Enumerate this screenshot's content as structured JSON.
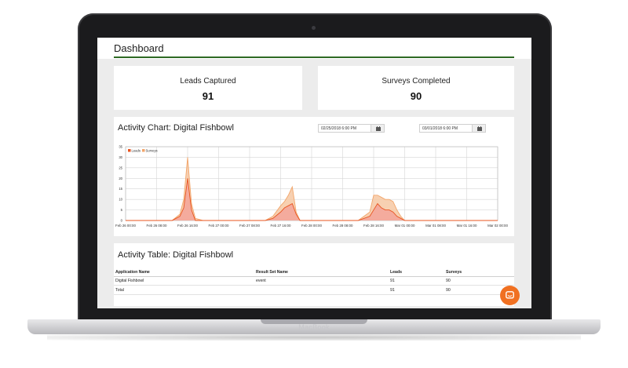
{
  "device": {
    "brand": "MacBook"
  },
  "page": {
    "title": "Dashboard"
  },
  "stats": [
    {
      "label": "Leads Captured",
      "value": "91"
    },
    {
      "label": "Surveys Completed",
      "value": "90"
    }
  ],
  "activity_chart": {
    "title": "Activity Chart: Digital Fishbowl",
    "start_date": "02/25/2018 6:00 PM",
    "end_date": "03/01/2018 6:00 PM",
    "calendar_icon": "calendar-icon"
  },
  "chart_data": {
    "type": "area",
    "title": "",
    "xlabel": "",
    "ylabel": "",
    "ylim": [
      0,
      35
    ],
    "yticks": [
      "35",
      "30",
      "25",
      "20",
      "15",
      "10",
      "5",
      "0"
    ],
    "xticks": [
      "Feb 26 00:00",
      "Feb 26 08:00",
      "Feb 26 16:00",
      "Feb 27 00:00",
      "Feb 27 08:00",
      "Feb 27 16:00",
      "Feb 28 00:00",
      "Feb 28 08:00",
      "Feb 28 16:00",
      "Mar 01 00:00",
      "Mar 01 08:00",
      "Mar 01 16:00",
      "Mar 02 00:00"
    ],
    "x_hours": [
      0,
      8,
      12,
      14,
      15,
      16,
      17,
      18,
      20,
      36,
      38,
      40,
      41,
      42,
      43,
      44,
      45,
      46,
      60,
      63,
      64,
      65,
      66,
      67,
      68,
      69,
      70,
      71,
      72,
      96
    ],
    "legend": "top-left",
    "grid": true,
    "series": [
      {
        "name": "Leads",
        "color": "#e8541f",
        "fill": "#f3a59a",
        "values": [
          0,
          0,
          0,
          2,
          6,
          20,
          5,
          0,
          0,
          0,
          1,
          4,
          6,
          7,
          8,
          3,
          0,
          0,
          0,
          2,
          5,
          8,
          6,
          5,
          5,
          4,
          2,
          1,
          0,
          0
        ]
      },
      {
        "name": "Surveys",
        "color": "#f2a56a",
        "fill": "#f6c8a3",
        "values": [
          0,
          0,
          0,
          3,
          10,
          30,
          8,
          1,
          0,
          0,
          2,
          7,
          9,
          12,
          16,
          4,
          0,
          0,
          0,
          4,
          12,
          12,
          11,
          10,
          10,
          9,
          5,
          2,
          0,
          0
        ]
      }
    ]
  },
  "activity_table": {
    "title": "Activity Table: Digital Fishbowl",
    "columns": [
      "Application Name",
      "Result Set Name",
      "Leads",
      "Surveys"
    ],
    "rows": [
      [
        "Digital Fishbowl",
        "event",
        "91",
        "90"
      ],
      [
        "Total",
        "",
        "91",
        "90"
      ]
    ]
  },
  "chat": {
    "icon": "chat-icon",
    "color": "#f07021"
  }
}
